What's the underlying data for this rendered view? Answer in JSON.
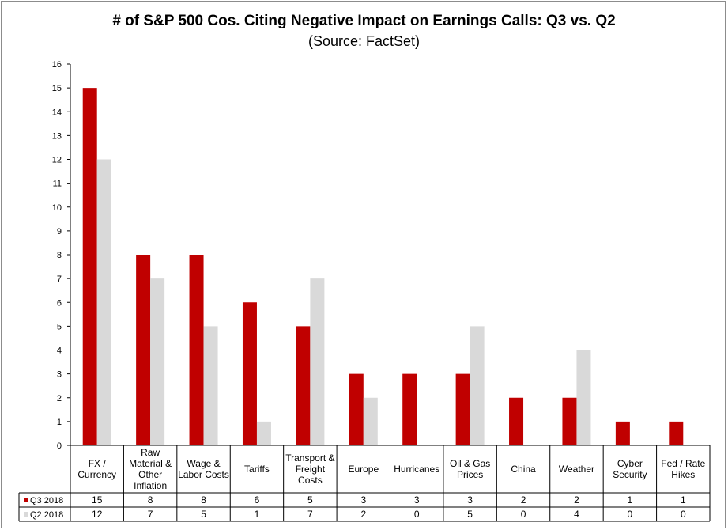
{
  "chart_data": {
    "type": "bar",
    "title": "# of S&P 500 Cos. Citing Negative Impact on Earnings Calls: Q3 vs. Q2",
    "subtitle": "(Source: FactSet)",
    "categories": [
      [
        "FX /",
        "Currency"
      ],
      [
        "Raw",
        "Material &",
        "Other",
        "Inflation"
      ],
      [
        "Wage &",
        "Labor Costs"
      ],
      [
        "Tariffs"
      ],
      [
        "Transport &",
        "Freight",
        "Costs"
      ],
      [
        "Europe"
      ],
      [
        "Hurricanes"
      ],
      [
        "Oil & Gas",
        "Prices"
      ],
      [
        "China"
      ],
      [
        "Weather"
      ],
      [
        "Cyber",
        "Security"
      ],
      [
        "Fed / Rate",
        "Hikes"
      ]
    ],
    "series": [
      {
        "name": "Q3 2018",
        "color": "#c00000",
        "values": [
          15,
          8,
          8,
          6,
          5,
          3,
          3,
          3,
          2,
          2,
          1,
          1
        ]
      },
      {
        "name": "Q2 2018",
        "color": "#d9d9d9",
        "values": [
          12,
          7,
          5,
          1,
          7,
          2,
          0,
          5,
          0,
          4,
          0,
          0
        ]
      }
    ],
    "ylim": [
      0,
      16
    ],
    "yticks": [
      0,
      1,
      2,
      3,
      4,
      5,
      6,
      7,
      8,
      9,
      10,
      11,
      12,
      13,
      14,
      15,
      16
    ],
    "xlabel": "",
    "ylabel": "",
    "grid": false,
    "legend": "data-table-left"
  }
}
